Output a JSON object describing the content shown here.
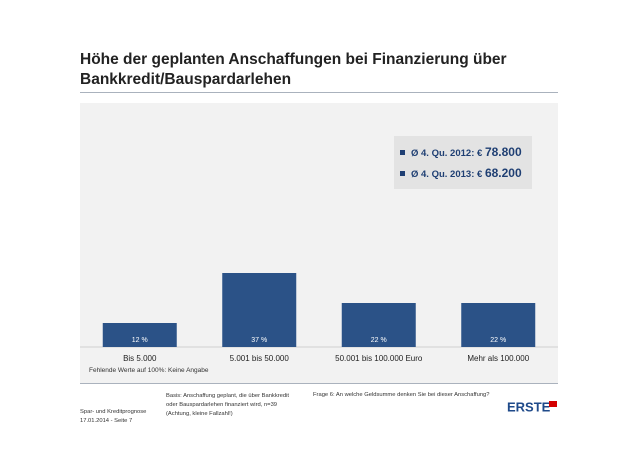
{
  "page": {
    "title": "Höhe der geplanten Anschaffungen bei Finanzierung über Bankkredit/Bauspardarlehen"
  },
  "chart_data": {
    "type": "bar",
    "categories": [
      "Bis 5.000",
      "5.001 bis 50.000",
      "50.001 bis 100.000 Euro",
      "Mehr als 100.000"
    ],
    "values": [
      12,
      37,
      22,
      22
    ],
    "data_labels": [
      "12 %",
      "37 %",
      "22 %",
      "22 %"
    ],
    "ylim": [
      0,
      100
    ],
    "title": "Höhe der geplanten Anschaffungen bei Finanzierung über Bankkredit/Bauspardarlehen",
    "xlabel": "",
    "ylabel": "",
    "grid": false,
    "bar_color": "#2b5287",
    "label_color": "#ffffff",
    "legend_placement": "top-right"
  },
  "legend": {
    "items": [
      {
        "prefix": "Ø 4. Qu. 2012: €",
        "value": "78.800"
      },
      {
        "prefix": "Ø 4. Qu. 2013: €",
        "value": "68.200"
      }
    ]
  },
  "notes": {
    "missing": "Fehlende Werte auf 100%: Keine Angabe"
  },
  "footer": {
    "basis": "Basis: Anschaffung geplant, die über Bankkredit oder Bauspardarlehen finanziert wird, n=39 (Achtung, kleine Fallzahl!)",
    "question": "Frage 6: An welche Geldsumme denken Sie bei dieser Anschaffung?",
    "line1": "Spar- und Kreditprognose",
    "line2": "17.01.2014 - Seite 7"
  },
  "logo": {
    "text": "ERSTE",
    "color": "#1f4a8a",
    "accent": "#d40000"
  }
}
